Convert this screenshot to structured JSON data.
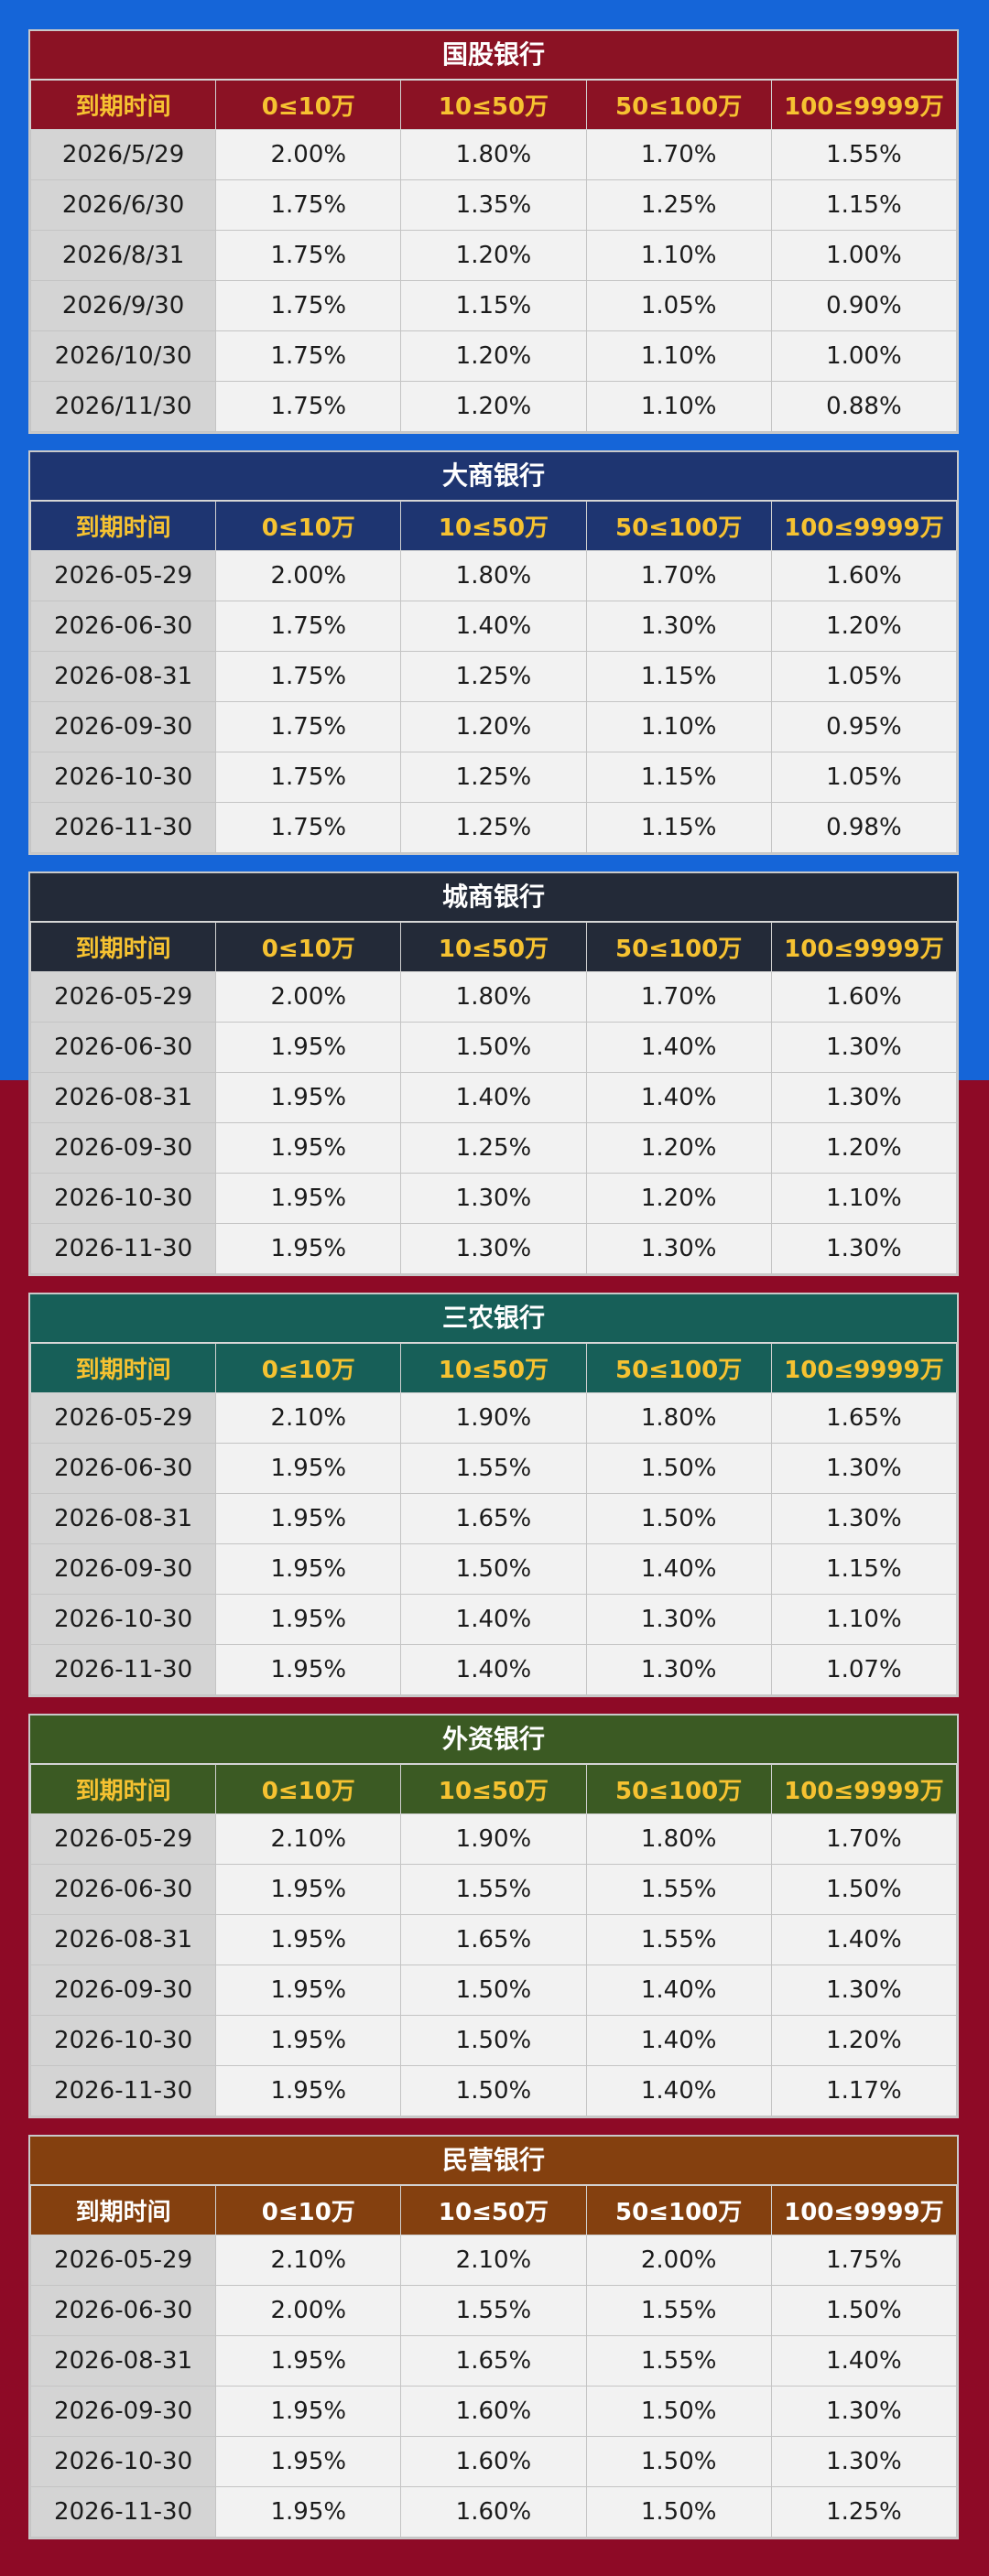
{
  "headers": [
    "到期时间",
    "0≤10万",
    "10≤50万",
    "50≤100万",
    "100≤9999万"
  ],
  "banks": [
    {
      "name": "国股银行",
      "color": "#8b1224",
      "header_text_color": "#f6c231",
      "rows": [
        [
          "2026/5/29",
          "2.00%",
          "1.80%",
          "1.70%",
          "1.55%"
        ],
        [
          "2026/6/30",
          "1.75%",
          "1.35%",
          "1.25%",
          "1.15%"
        ],
        [
          "2026/8/31",
          "1.75%",
          "1.20%",
          "1.10%",
          "1.00%"
        ],
        [
          "2026/9/30",
          "1.75%",
          "1.15%",
          "1.05%",
          "0.90%"
        ],
        [
          "2026/10/30",
          "1.75%",
          "1.20%",
          "1.10%",
          "1.00%"
        ],
        [
          "2026/11/30",
          "1.75%",
          "1.20%",
          "1.10%",
          "0.88%"
        ]
      ]
    },
    {
      "name": "大商银行",
      "color": "#1e3571",
      "header_text_color": "#f6c231",
      "rows": [
        [
          "2026-05-29",
          "2.00%",
          "1.80%",
          "1.70%",
          "1.60%"
        ],
        [
          "2026-06-30",
          "1.75%",
          "1.40%",
          "1.30%",
          "1.20%"
        ],
        [
          "2026-08-31",
          "1.75%",
          "1.25%",
          "1.15%",
          "1.05%"
        ],
        [
          "2026-09-30",
          "1.75%",
          "1.20%",
          "1.10%",
          "0.95%"
        ],
        [
          "2026-10-30",
          "1.75%",
          "1.25%",
          "1.15%",
          "1.05%"
        ],
        [
          "2026-11-30",
          "1.75%",
          "1.25%",
          "1.15%",
          "0.98%"
        ]
      ]
    },
    {
      "name": "城商银行",
      "color": "#232a38",
      "header_text_color": "#f6c231",
      "rows": [
        [
          "2026-05-29",
          "2.00%",
          "1.80%",
          "1.70%",
          "1.60%"
        ],
        [
          "2026-06-30",
          "1.95%",
          "1.50%",
          "1.40%",
          "1.30%"
        ],
        [
          "2026-08-31",
          "1.95%",
          "1.40%",
          "1.40%",
          "1.30%"
        ],
        [
          "2026-09-30",
          "1.95%",
          "1.25%",
          "1.20%",
          "1.20%"
        ],
        [
          "2026-10-30",
          "1.95%",
          "1.30%",
          "1.20%",
          "1.10%"
        ],
        [
          "2026-11-30",
          "1.95%",
          "1.30%",
          "1.30%",
          "1.30%"
        ]
      ]
    },
    {
      "name": "三农银行",
      "color": "#175f58",
      "header_text_color": "#f6c231",
      "rows": [
        [
          "2026-05-29",
          "2.10%",
          "1.90%",
          "1.80%",
          "1.65%"
        ],
        [
          "2026-06-30",
          "1.95%",
          "1.55%",
          "1.50%",
          "1.30%"
        ],
        [
          "2026-08-31",
          "1.95%",
          "1.65%",
          "1.50%",
          "1.30%"
        ],
        [
          "2026-09-30",
          "1.95%",
          "1.50%",
          "1.40%",
          "1.15%"
        ],
        [
          "2026-10-30",
          "1.95%",
          "1.40%",
          "1.30%",
          "1.10%"
        ],
        [
          "2026-11-30",
          "1.95%",
          "1.40%",
          "1.30%",
          "1.07%"
        ]
      ]
    },
    {
      "name": "外资银行",
      "color": "#3b5a23",
      "header_text_color": "#f6c231",
      "rows": [
        [
          "2026-05-29",
          "2.10%",
          "1.90%",
          "1.80%",
          "1.70%"
        ],
        [
          "2026-06-30",
          "1.95%",
          "1.55%",
          "1.55%",
          "1.50%"
        ],
        [
          "2026-08-31",
          "1.95%",
          "1.65%",
          "1.55%",
          "1.40%"
        ],
        [
          "2026-09-30",
          "1.95%",
          "1.50%",
          "1.40%",
          "1.30%"
        ],
        [
          "2026-10-30",
          "1.95%",
          "1.50%",
          "1.40%",
          "1.20%"
        ],
        [
          "2026-11-30",
          "1.95%",
          "1.50%",
          "1.40%",
          "1.17%"
        ]
      ]
    },
    {
      "name": "民营银行",
      "color": "#84400f",
      "header_text_color": "#ffffff",
      "rows": [
        [
          "2026-05-29",
          "2.10%",
          "2.10%",
          "2.00%",
          "1.75%"
        ],
        [
          "2026-06-30",
          "2.00%",
          "1.55%",
          "1.55%",
          "1.50%"
        ],
        [
          "2026-08-31",
          "1.95%",
          "1.65%",
          "1.55%",
          "1.40%"
        ],
        [
          "2026-09-30",
          "1.95%",
          "1.60%",
          "1.50%",
          "1.30%"
        ],
        [
          "2026-10-30",
          "1.95%",
          "1.60%",
          "1.50%",
          "1.30%"
        ],
        [
          "2026-11-30",
          "1.95%",
          "1.60%",
          "1.50%",
          "1.25%"
        ]
      ]
    }
  ]
}
